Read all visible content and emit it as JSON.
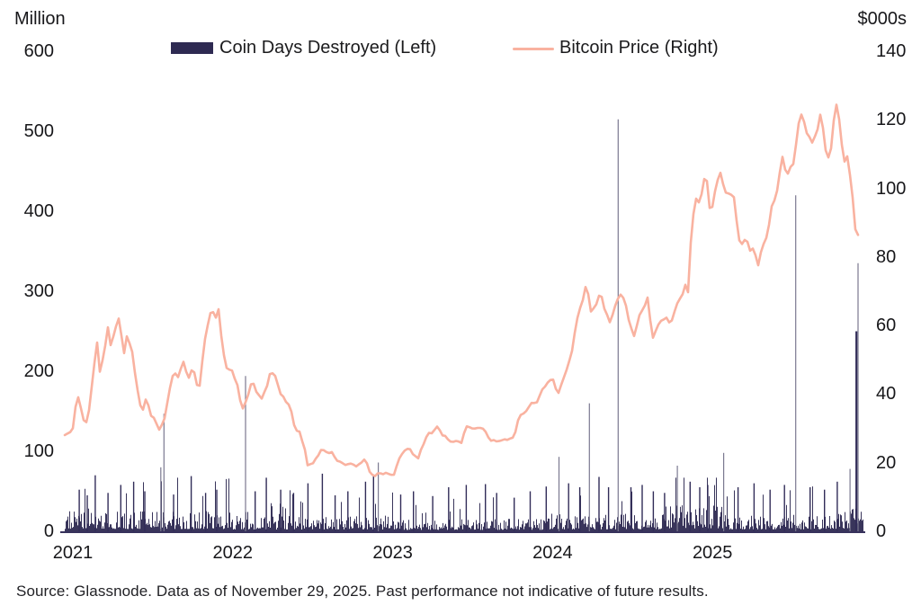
{
  "page_background": "#ffffff",
  "source": "Source: Glassnode. Data as of November 29, 2025. Past performance not indicative of future results.",
  "chart_data": {
    "type": "combo",
    "subtype": "bar+line, dual axis, daily frequency",
    "grid": "off",
    "legend_position": "top-center",
    "axis_color": "#37325c",
    "text_color": "#1c1c1e",
    "left_axis": {
      "title": "Million",
      "range": [
        0,
        600
      ],
      "ticks": [
        0,
        100,
        200,
        300,
        400,
        500,
        600
      ]
    },
    "right_axis": {
      "title": "$000s",
      "range": [
        0,
        140
      ],
      "ticks": [
        0,
        20,
        40,
        60,
        80,
        100,
        120,
        140
      ]
    },
    "x_axis": {
      "tick_labels": [
        "2021",
        "2022",
        "2023",
        "2024",
        "2025"
      ],
      "range_decimal_years": [
        2020.95,
        2025.94
      ]
    },
    "series": [
      {
        "name": "Coin Days Destroyed (Left)",
        "type": "bar",
        "axis": "left",
        "color": "#2e2a52",
        "units": "million coin days destroyed",
        "baseline_range_million": [
          2,
          55
        ],
        "baseline_note": "dense daily bars, mostly 2-40M; denser/taller clusters in 2021 and late 2024-2025",
        "major_spikes": [
          [
            2021.04,
            52
          ],
          [
            2021.09,
            45
          ],
          [
            2021.14,
            70
          ],
          [
            2021.22,
            48
          ],
          [
            2021.3,
            58
          ],
          [
            2021.38,
            62
          ],
          [
            2021.45,
            50
          ],
          [
            2021.55,
            80
          ],
          [
            2021.57,
            147
          ],
          [
            2021.63,
            46
          ],
          [
            2021.74,
            69
          ],
          [
            2021.83,
            48
          ],
          [
            2021.9,
            52
          ],
          [
            2022.08,
            194
          ],
          [
            2022.14,
            50
          ],
          [
            2022.21,
            67
          ],
          [
            2022.3,
            52
          ],
          [
            2022.38,
            48
          ],
          [
            2022.47,
            60
          ],
          [
            2022.56,
            72
          ],
          [
            2022.64,
            45
          ],
          [
            2022.72,
            50
          ],
          [
            2022.83,
            62
          ],
          [
            2022.88,
            70
          ],
          [
            2022.91,
            86
          ],
          [
            2023.05,
            46
          ],
          [
            2023.13,
            50
          ],
          [
            2023.25,
            44
          ],
          [
            2023.35,
            55
          ],
          [
            2023.46,
            58
          ],
          [
            2023.58,
            59
          ],
          [
            2023.65,
            48
          ],
          [
            2023.76,
            42
          ],
          [
            2023.86,
            50
          ],
          [
            2023.96,
            56
          ],
          [
            2024.04,
            93
          ],
          [
            2024.1,
            60
          ],
          [
            2024.17,
            55
          ],
          [
            2024.23,
            160
          ],
          [
            2024.29,
            68
          ],
          [
            2024.35,
            55
          ],
          [
            2024.41,
            515
          ],
          [
            2024.49,
            55
          ],
          [
            2024.56,
            58
          ],
          [
            2024.63,
            50
          ],
          [
            2024.7,
            48
          ],
          [
            2024.78,
            82
          ],
          [
            2024.86,
            62
          ],
          [
            2024.92,
            55
          ],
          [
            2024.97,
            58
          ],
          [
            2025.07,
            98
          ],
          [
            2025.16,
            55
          ],
          [
            2025.26,
            60
          ],
          [
            2025.36,
            52
          ],
          [
            2025.45,
            58
          ],
          [
            2025.52,
            420
          ],
          [
            2025.61,
            55
          ],
          [
            2025.7,
            52
          ],
          [
            2025.78,
            62
          ],
          [
            2025.86,
            78
          ],
          [
            2025.9,
            250
          ],
          [
            2025.91,
            335
          ]
        ]
      },
      {
        "name": "Bitcoin Price (Right)",
        "type": "line",
        "axis": "right",
        "color": "#f9b2a0",
        "units": "$000s",
        "points": [
          [
            2020.95,
            28
          ],
          [
            2021.0,
            30
          ],
          [
            2021.02,
            38
          ],
          [
            2021.04,
            40
          ],
          [
            2021.06,
            33
          ],
          [
            2021.08,
            31
          ],
          [
            2021.1,
            35
          ],
          [
            2021.13,
            47
          ],
          [
            2021.15,
            56
          ],
          [
            2021.17,
            46
          ],
          [
            2021.2,
            54
          ],
          [
            2021.22,
            60
          ],
          [
            2021.24,
            53
          ],
          [
            2021.26,
            58
          ],
          [
            2021.29,
            63
          ],
          [
            2021.32,
            52
          ],
          [
            2021.34,
            57
          ],
          [
            2021.37,
            53
          ],
          [
            2021.4,
            42
          ],
          [
            2021.42,
            37
          ],
          [
            2021.44,
            35
          ],
          [
            2021.46,
            39
          ],
          [
            2021.49,
            34
          ],
          [
            2021.52,
            32
          ],
          [
            2021.54,
            30
          ],
          [
            2021.56,
            32
          ],
          [
            2021.58,
            34
          ],
          [
            2021.6,
            40
          ],
          [
            2021.63,
            46
          ],
          [
            2021.66,
            44
          ],
          [
            2021.69,
            49
          ],
          [
            2021.71,
            46
          ],
          [
            2021.73,
            44
          ],
          [
            2021.75,
            48
          ],
          [
            2021.77,
            44
          ],
          [
            2021.79,
            41
          ],
          [
            2021.81,
            50
          ],
          [
            2021.83,
            57
          ],
          [
            2021.85,
            62
          ],
          [
            2021.87,
            66
          ],
          [
            2021.89,
            61
          ],
          [
            2021.91,
            65
          ],
          [
            2021.93,
            56
          ],
          [
            2021.95,
            49
          ],
          [
            2021.97,
            47
          ],
          [
            2022.0,
            46
          ],
          [
            2022.03,
            42
          ],
          [
            2022.06,
            35
          ],
          [
            2022.09,
            39
          ],
          [
            2022.12,
            44
          ],
          [
            2022.15,
            40
          ],
          [
            2022.18,
            39
          ],
          [
            2022.21,
            42
          ],
          [
            2022.24,
            47
          ],
          [
            2022.27,
            45
          ],
          [
            2022.3,
            40
          ],
          [
            2022.33,
            38
          ],
          [
            2022.36,
            36
          ],
          [
            2022.39,
            30
          ],
          [
            2022.42,
            29
          ],
          [
            2022.45,
            24
          ],
          [
            2022.47,
            19
          ],
          [
            2022.5,
            20
          ],
          [
            2022.53,
            22
          ],
          [
            2022.56,
            24
          ],
          [
            2022.59,
            23
          ],
          [
            2022.62,
            23
          ],
          [
            2022.65,
            20
          ],
          [
            2022.68,
            20
          ],
          [
            2022.71,
            19
          ],
          [
            2022.74,
            20
          ],
          [
            2022.77,
            19
          ],
          [
            2022.8,
            20
          ],
          [
            2022.83,
            21
          ],
          [
            2022.86,
            17
          ],
          [
            2022.89,
            16
          ],
          [
            2022.92,
            17
          ],
          [
            2022.95,
            17
          ],
          [
            2022.98,
            16.6
          ],
          [
            2023.01,
            17
          ],
          [
            2023.04,
            21
          ],
          [
            2023.07,
            23
          ],
          [
            2023.1,
            24.5
          ],
          [
            2023.13,
            22
          ],
          [
            2023.16,
            21
          ],
          [
            2023.19,
            25
          ],
          [
            2023.22,
            28
          ],
          [
            2023.25,
            28.5
          ],
          [
            2023.28,
            30
          ],
          [
            2023.31,
            28
          ],
          [
            2023.34,
            27
          ],
          [
            2023.37,
            26.5
          ],
          [
            2023.4,
            27
          ],
          [
            2023.43,
            26
          ],
          [
            2023.46,
            30.5
          ],
          [
            2023.49,
            30.5
          ],
          [
            2023.52,
            30
          ],
          [
            2023.55,
            29.5
          ],
          [
            2023.58,
            29
          ],
          [
            2023.61,
            26
          ],
          [
            2023.64,
            26
          ],
          [
            2023.67,
            26
          ],
          [
            2023.7,
            26.5
          ],
          [
            2023.73,
            27
          ],
          [
            2023.76,
            28
          ],
          [
            2023.79,
            34
          ],
          [
            2023.82,
            34.5
          ],
          [
            2023.85,
            36
          ],
          [
            2023.88,
            37.5
          ],
          [
            2023.91,
            38
          ],
          [
            2023.94,
            42
          ],
          [
            2023.97,
            43.5
          ],
          [
            2024.0,
            44
          ],
          [
            2024.03,
            40
          ],
          [
            2024.06,
            43
          ],
          [
            2024.09,
            47
          ],
          [
            2024.12,
            52
          ],
          [
            2024.15,
            62
          ],
          [
            2024.19,
            68
          ],
          [
            2024.21,
            73
          ],
          [
            2024.24,
            64
          ],
          [
            2024.27,
            66
          ],
          [
            2024.3,
            70
          ],
          [
            2024.33,
            64
          ],
          [
            2024.36,
            61
          ],
          [
            2024.39,
            66
          ],
          [
            2024.42,
            69
          ],
          [
            2024.45,
            67
          ],
          [
            2024.48,
            61
          ],
          [
            2024.51,
            57
          ],
          [
            2024.54,
            63
          ],
          [
            2024.57,
            65
          ],
          [
            2024.6,
            68
          ],
          [
            2024.62,
            55
          ],
          [
            2024.65,
            59
          ],
          [
            2024.68,
            61
          ],
          [
            2024.71,
            63
          ],
          [
            2024.74,
            61
          ],
          [
            2024.77,
            66
          ],
          [
            2024.8,
            68
          ],
          [
            2024.83,
            72
          ],
          [
            2024.85,
            69
          ],
          [
            2024.87,
            90
          ],
          [
            2024.9,
            98
          ],
          [
            2024.92,
            96
          ],
          [
            2024.94,
            101
          ],
          [
            2024.96,
            106
          ],
          [
            2024.98,
            94
          ],
          [
            2025.0,
            95
          ],
          [
            2025.03,
            102
          ],
          [
            2025.05,
            105
          ],
          [
            2025.08,
            98
          ],
          [
            2025.11,
            97
          ],
          [
            2025.14,
            96
          ],
          [
            2025.16,
            85
          ],
          [
            2025.19,
            84
          ],
          [
            2025.21,
            87
          ],
          [
            2025.24,
            82
          ],
          [
            2025.26,
            84
          ],
          [
            2025.28,
            76
          ],
          [
            2025.31,
            83
          ],
          [
            2025.34,
            85
          ],
          [
            2025.37,
            95
          ],
          [
            2025.4,
            97
          ],
          [
            2025.42,
            104
          ],
          [
            2025.44,
            110
          ],
          [
            2025.46,
            104
          ],
          [
            2025.49,
            106
          ],
          [
            2025.51,
            108
          ],
          [
            2025.54,
            118
          ],
          [
            2025.56,
            121
          ],
          [
            2025.58,
            117
          ],
          [
            2025.61,
            115
          ],
          [
            2025.63,
            113
          ],
          [
            2025.66,
            118
          ],
          [
            2025.68,
            124
          ],
          [
            2025.7,
            112
          ],
          [
            2025.72,
            109
          ],
          [
            2025.74,
            112
          ],
          [
            2025.77,
            126
          ],
          [
            2025.79,
            121
          ],
          [
            2025.81,
            112
          ],
          [
            2025.83,
            106
          ],
          [
            2025.85,
            110
          ],
          [
            2025.86,
            103
          ],
          [
            2025.88,
            96
          ],
          [
            2025.89,
            91
          ],
          [
            2025.9,
            84
          ],
          [
            2025.91,
            87
          ],
          [
            2025.92,
            90
          ]
        ]
      }
    ]
  }
}
